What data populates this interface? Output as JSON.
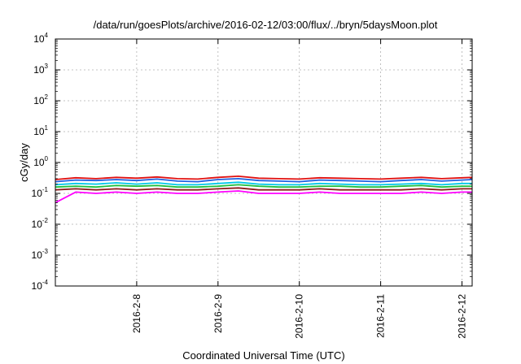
{
  "chart_data": {
    "type": "line",
    "title": "/data/run/goesPlots/archive/2016-02-12/03:00/flux/../bryn/5daysMoon.plot",
    "xlabel": "Coordinated Universal Time (UTC)",
    "ylabel": "cGy/day",
    "y_scale": "log",
    "ylim": [
      0.0001,
      10000
    ],
    "y_ticks": [
      {
        "value": 0.0001,
        "base": "10",
        "exp": "-4"
      },
      {
        "value": 0.001,
        "base": "10",
        "exp": "-3"
      },
      {
        "value": 0.01,
        "base": "10",
        "exp": "-2"
      },
      {
        "value": 0.1,
        "base": "10",
        "exp": "-1"
      },
      {
        "value": 1,
        "base": "10",
        "exp": "0"
      },
      {
        "value": 10,
        "base": "10",
        "exp": "1"
      },
      {
        "value": 100,
        "base": "10",
        "exp": "2"
      },
      {
        "value": 1000,
        "base": "10",
        "exp": "3"
      },
      {
        "value": 10000,
        "base": "10",
        "exp": "4"
      }
    ],
    "xlim": [
      "2016-02-07T00:00",
      "2016-02-12T03:00"
    ],
    "x_ticks": [
      {
        "value": "2016-02-08T00:00",
        "label": "2016-2-8"
      },
      {
        "value": "2016-02-09T00:00",
        "label": "2016-2-9"
      },
      {
        "value": "2016-02-10T00:00",
        "label": "2016-2-10"
      },
      {
        "value": "2016-02-11T00:00",
        "label": "2016-2-11"
      },
      {
        "value": "2016-02-12T00:00",
        "label": "2016-2-12"
      }
    ],
    "grid": true,
    "x": [
      "2016-02-07T00:00",
      "2016-02-07T06:00",
      "2016-02-07T12:00",
      "2016-02-07T18:00",
      "2016-02-08T00:00",
      "2016-02-08T06:00",
      "2016-02-08T12:00",
      "2016-02-08T18:00",
      "2016-02-09T00:00",
      "2016-02-09T06:00",
      "2016-02-09T12:00",
      "2016-02-09T18:00",
      "2016-02-10T00:00",
      "2016-02-10T06:00",
      "2016-02-10T12:00",
      "2016-02-10T18:00",
      "2016-02-11T00:00",
      "2016-02-11T06:00",
      "2016-02-11T12:00",
      "2016-02-11T18:00",
      "2016-02-12T00:00",
      "2016-02-12T03:00"
    ],
    "series": [
      {
        "color": "#e01010",
        "values": [
          0.28,
          0.32,
          0.3,
          0.33,
          0.31,
          0.34,
          0.3,
          0.29,
          0.33,
          0.36,
          0.31,
          0.3,
          0.29,
          0.32,
          0.31,
          0.3,
          0.29,
          0.31,
          0.33,
          0.3,
          0.32,
          0.33
        ]
      },
      {
        "color": "#2060e0",
        "values": [
          0.24,
          0.27,
          0.26,
          0.28,
          0.26,
          0.29,
          0.25,
          0.24,
          0.28,
          0.3,
          0.26,
          0.25,
          0.24,
          0.27,
          0.26,
          0.25,
          0.24,
          0.26,
          0.28,
          0.25,
          0.27,
          0.28
        ]
      },
      {
        "color": "#00c8e8",
        "values": [
          0.19,
          0.21,
          0.2,
          0.22,
          0.2,
          0.22,
          0.19,
          0.19,
          0.21,
          0.23,
          0.2,
          0.19,
          0.19,
          0.21,
          0.2,
          0.19,
          0.19,
          0.2,
          0.21,
          0.19,
          0.21,
          0.21
        ]
      },
      {
        "color": "#20c040",
        "values": [
          0.16,
          0.17,
          0.16,
          0.18,
          0.17,
          0.18,
          0.16,
          0.16,
          0.17,
          0.19,
          0.17,
          0.16,
          0.16,
          0.17,
          0.17,
          0.16,
          0.16,
          0.17,
          0.18,
          0.16,
          0.17,
          0.17
        ]
      },
      {
        "color": "#8b1a1a",
        "values": [
          0.13,
          0.14,
          0.13,
          0.14,
          0.13,
          0.14,
          0.13,
          0.13,
          0.14,
          0.15,
          0.13,
          0.13,
          0.13,
          0.14,
          0.13,
          0.13,
          0.13,
          0.13,
          0.14,
          0.13,
          0.14,
          0.14
        ]
      },
      {
        "color": "#ff00ff",
        "values": [
          0.05,
          0.11,
          0.1,
          0.11,
          0.1,
          0.11,
          0.1,
          0.1,
          0.11,
          0.12,
          0.1,
          0.1,
          0.1,
          0.11,
          0.1,
          0.1,
          0.1,
          0.1,
          0.11,
          0.1,
          0.11,
          0.11
        ]
      }
    ]
  }
}
